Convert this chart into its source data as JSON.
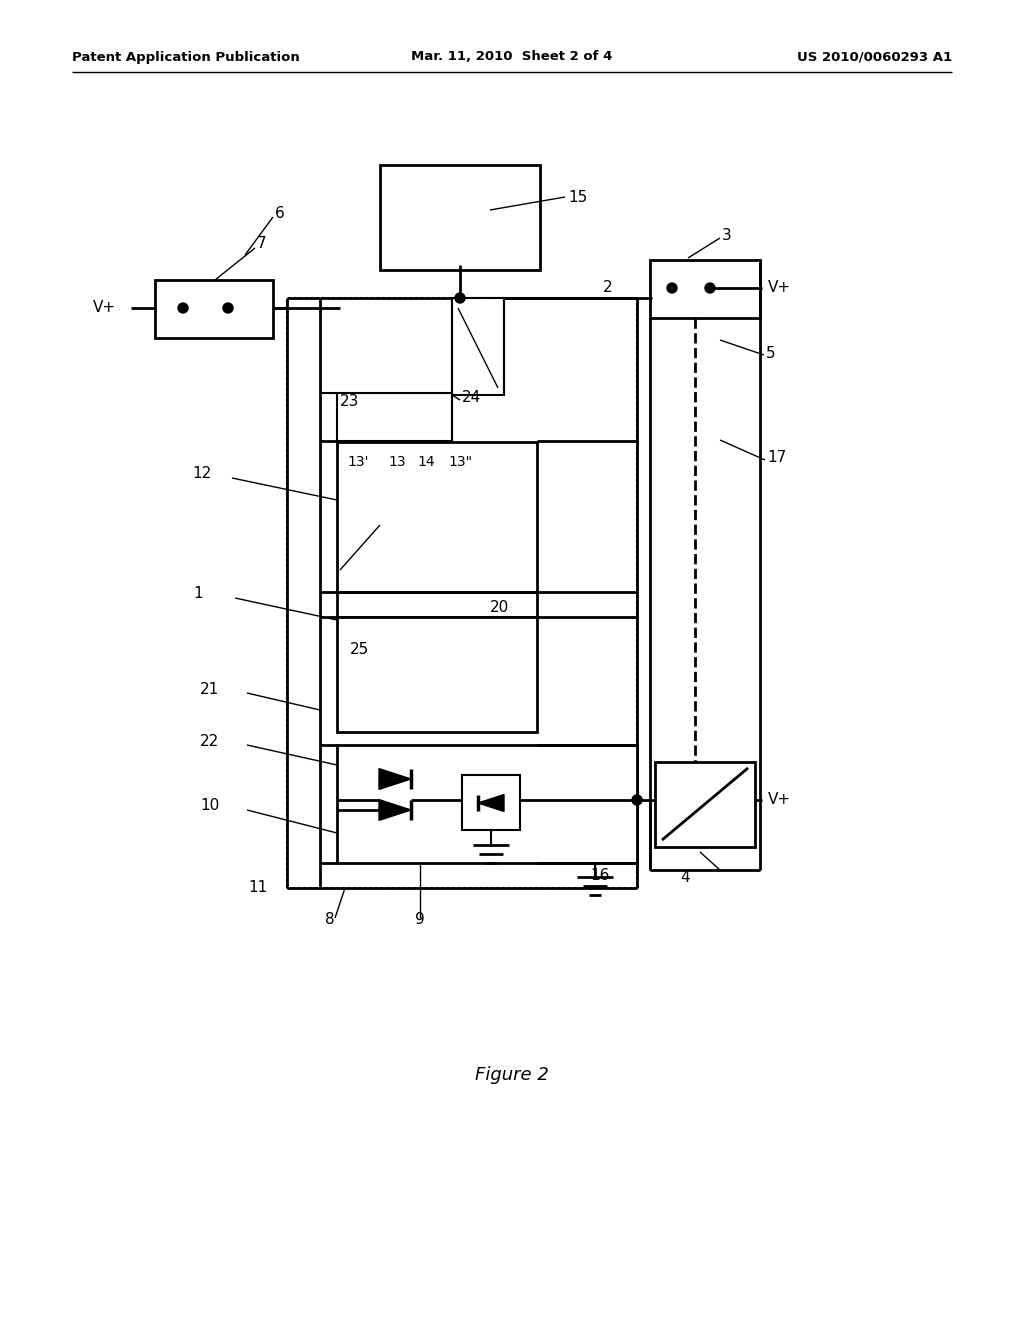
{
  "bg_color": "#ffffff",
  "header_left": "Patent Application Publication",
  "header_mid": "Mar. 11, 2010  Sheet 2 of 4",
  "header_right": "US 2010/0060293 A1",
  "figure_caption": "Figure 2",
  "line_color": "#000000",
  "lw": 1.5,
  "lw_thick": 2.0
}
